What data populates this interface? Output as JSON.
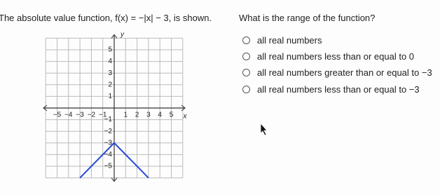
{
  "question": "The absolute value function, f(x) = −|x| − 3, is shown.",
  "graph": {
    "x_label": "x",
    "y_label": "y",
    "x_ticks": [
      "−5",
      "−4",
      "−3",
      "−2",
      "−1",
      "1",
      "2",
      "3",
      "4",
      "5"
    ],
    "y_ticks": [
      "5",
      "4",
      "3",
      "2",
      "1",
      "−1",
      "−2",
      "−3",
      "−4",
      "−5"
    ]
  },
  "prompt": "What is the range of the function?",
  "options": [
    "all real numbers",
    "all real numbers less than or equal to 0",
    "all real numbers greater than or equal to −3",
    "all real numbers less than or equal to −3"
  ]
}
